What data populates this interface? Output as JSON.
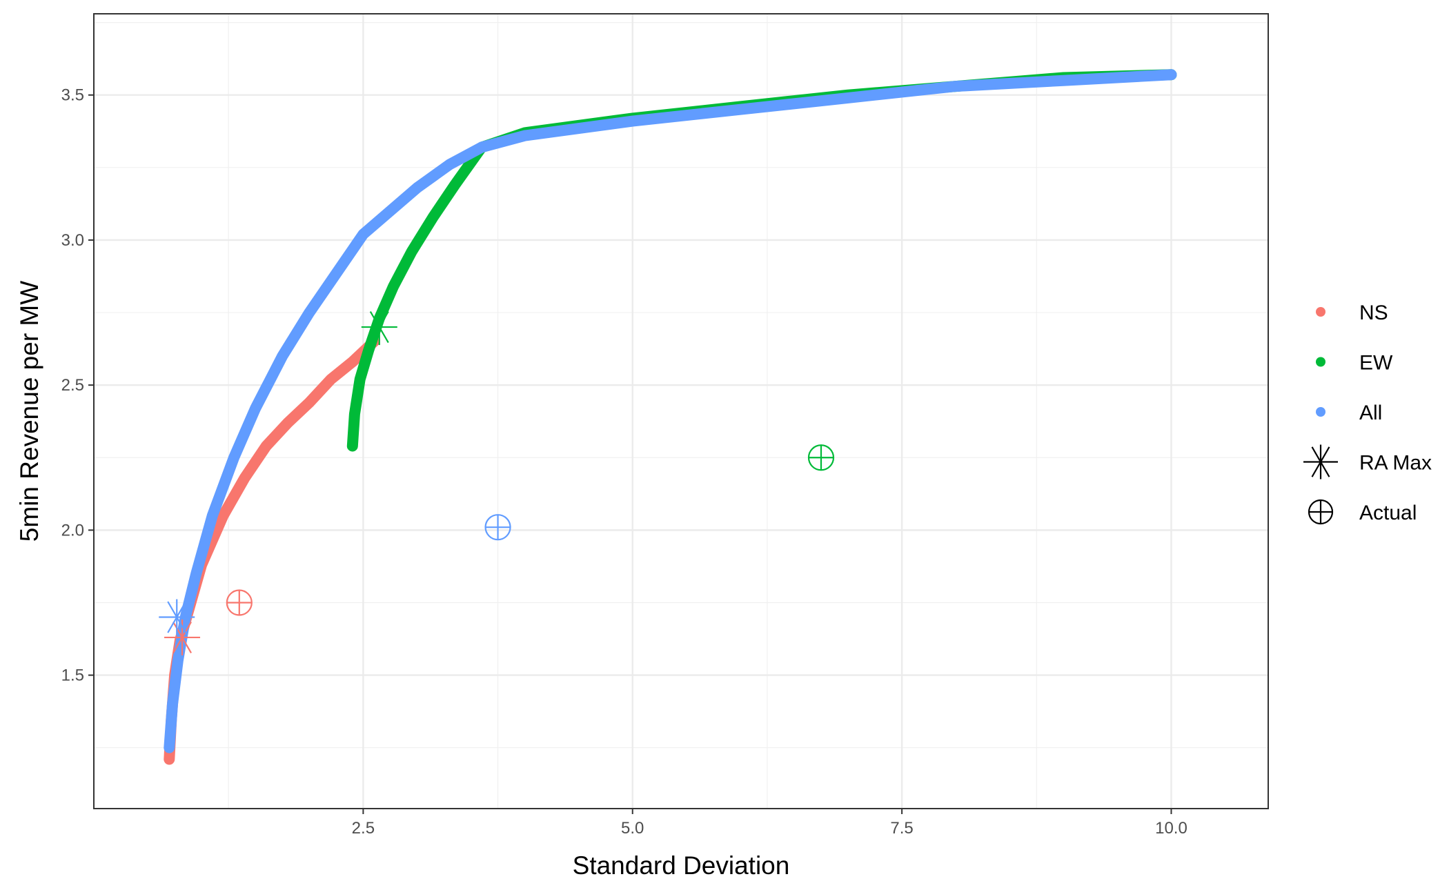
{
  "chart_data": {
    "type": "scatter",
    "title": "",
    "xlabel": "Standard Deviation",
    "ylabel": "5min Revenue per MW",
    "xlim": [
      0.0,
      10.9
    ],
    "ylim": [
      1.04,
      3.78
    ],
    "x_ticks": [
      2.5,
      5.0,
      7.5,
      10.0
    ],
    "x_tick_labels": [
      "2.5",
      "5.0",
      "7.5",
      "10.0"
    ],
    "y_ticks": [
      1.5,
      2.0,
      2.5,
      3.0,
      3.5
    ],
    "y_tick_labels": [
      "1.5",
      "2.0",
      "2.5",
      "3.0",
      "3.5"
    ],
    "grid": true,
    "legend_position": "right",
    "series": [
      {
        "name": "NS",
        "color": "#F8766D",
        "frontier": [
          [
            0.7,
            1.21
          ],
          [
            0.72,
            1.35
          ],
          [
            0.75,
            1.5
          ],
          [
            0.8,
            1.62
          ],
          [
            0.9,
            1.75
          ],
          [
            1.0,
            1.88
          ],
          [
            1.2,
            2.05
          ],
          [
            1.4,
            2.18
          ],
          [
            1.6,
            2.29
          ],
          [
            1.8,
            2.37
          ],
          [
            2.0,
            2.44
          ],
          [
            2.2,
            2.52
          ],
          [
            2.4,
            2.58
          ],
          [
            2.6,
            2.65
          ]
        ],
        "ra_max": [
          0.82,
          1.63
        ],
        "actual": [
          1.35,
          1.75
        ]
      },
      {
        "name": "EW",
        "color": "#00BA38",
        "frontier": [
          [
            2.4,
            2.29
          ],
          [
            2.42,
            2.4
          ],
          [
            2.47,
            2.52
          ],
          [
            2.55,
            2.62
          ],
          [
            2.65,
            2.73
          ],
          [
            2.78,
            2.84
          ],
          [
            2.95,
            2.96
          ],
          [
            3.15,
            3.08
          ],
          [
            3.35,
            3.19
          ],
          [
            3.6,
            3.32
          ],
          [
            4.0,
            3.37
          ],
          [
            5.0,
            3.42
          ],
          [
            6.0,
            3.46
          ],
          [
            7.0,
            3.5
          ],
          [
            8.0,
            3.53
          ],
          [
            9.0,
            3.56
          ],
          [
            10.0,
            3.57
          ]
        ],
        "ra_max": [
          2.65,
          2.7
        ],
        "actual": [
          6.75,
          2.25
        ]
      },
      {
        "name": "All",
        "color": "#619CFF",
        "frontier": [
          [
            0.7,
            1.25
          ],
          [
            0.73,
            1.4
          ],
          [
            0.78,
            1.55
          ],
          [
            0.85,
            1.7
          ],
          [
            0.95,
            1.85
          ],
          [
            1.1,
            2.05
          ],
          [
            1.3,
            2.25
          ],
          [
            1.5,
            2.42
          ],
          [
            1.75,
            2.6
          ],
          [
            2.0,
            2.75
          ],
          [
            2.5,
            3.02
          ],
          [
            3.0,
            3.18
          ],
          [
            3.3,
            3.26
          ],
          [
            3.6,
            3.32
          ],
          [
            4.0,
            3.36
          ],
          [
            5.0,
            3.41
          ],
          [
            6.0,
            3.45
          ],
          [
            7.0,
            3.49
          ],
          [
            8.0,
            3.53
          ],
          [
            9.0,
            3.55
          ],
          [
            10.0,
            3.57
          ]
        ],
        "ra_max": [
          0.77,
          1.7
        ],
        "actual": [
          3.75,
          2.01
        ]
      }
    ],
    "legend": {
      "items": [
        {
          "label": "NS",
          "symbol": "dot",
          "color": "#F8766D"
        },
        {
          "label": "EW",
          "symbol": "dot",
          "color": "#00BA38"
        },
        {
          "label": "All",
          "symbol": "dot",
          "color": "#619CFF"
        },
        {
          "label": "RA Max",
          "symbol": "asterisk",
          "color": "#000000"
        },
        {
          "label": "Actual",
          "symbol": "circle-plus",
          "color": "#000000"
        }
      ]
    }
  }
}
